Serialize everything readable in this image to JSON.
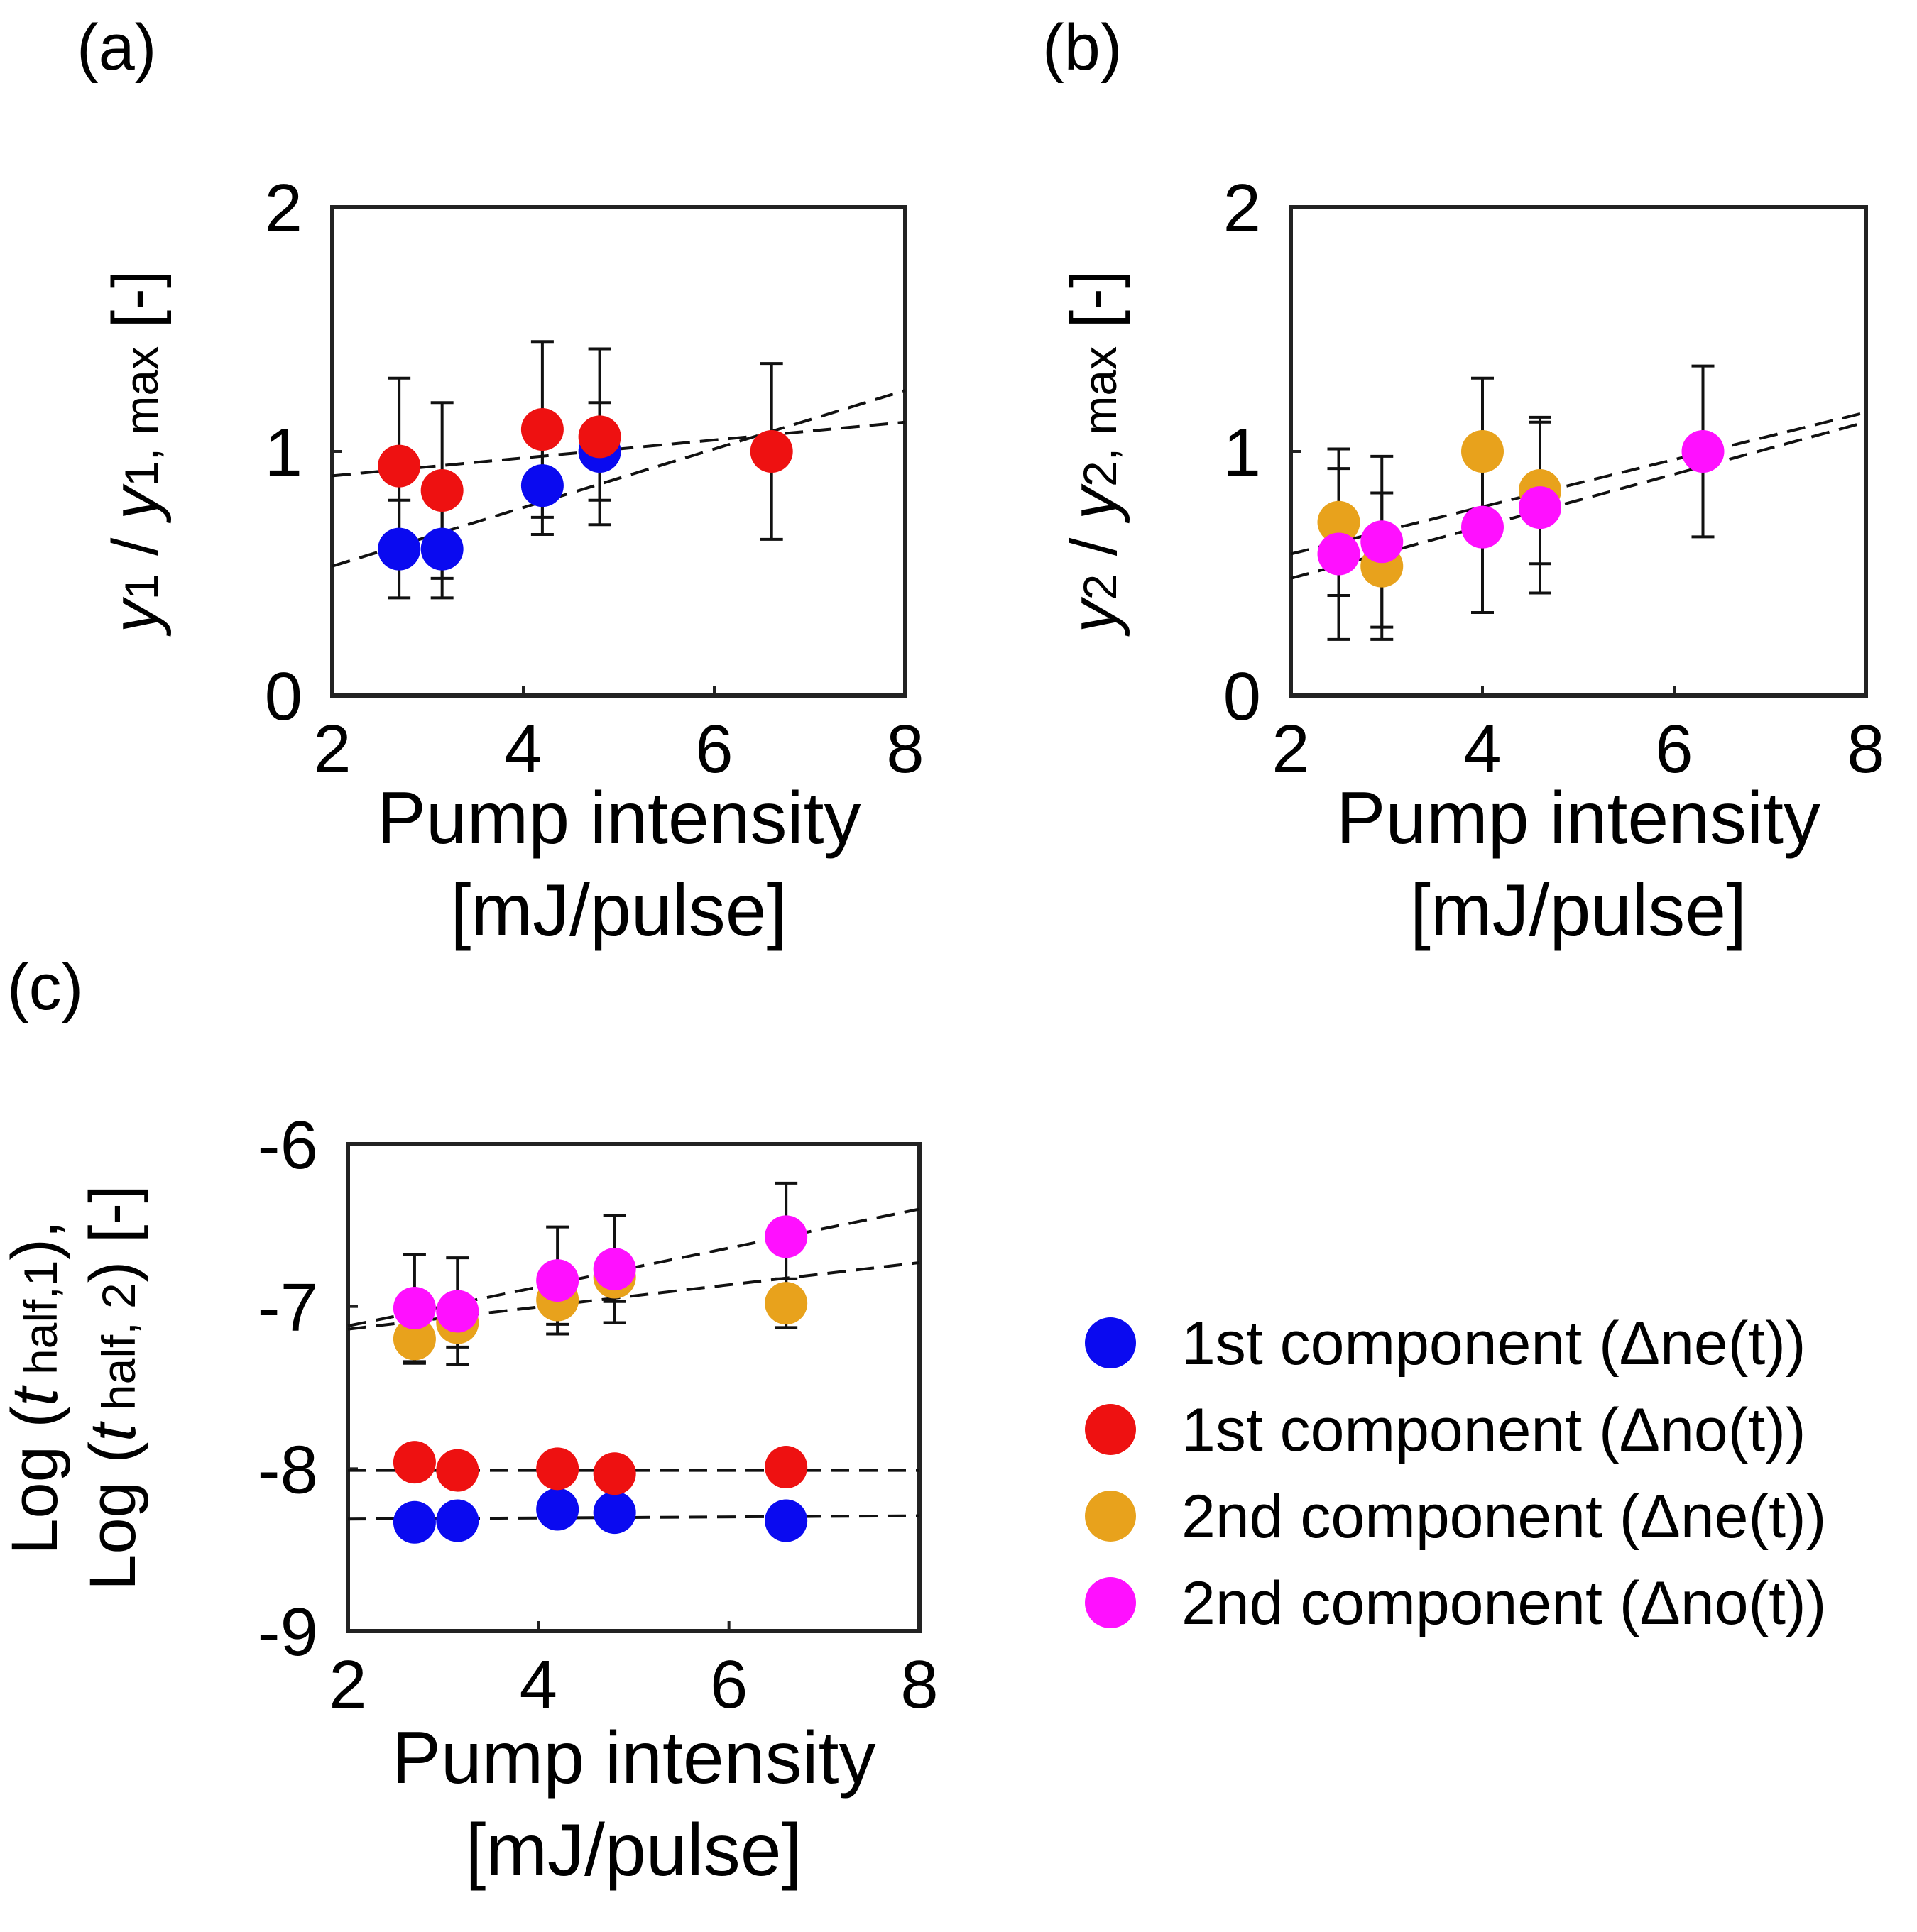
{
  "figure": {
    "legend": [
      {
        "label": "1st component (Δne(t))",
        "color": "#0a0af0"
      },
      {
        "label": "1st component (Δno(t))",
        "color": "#ee1111"
      },
      {
        "label": "2nd component (Δne(t))",
        "color": "#e8a21c"
      },
      {
        "label": "2nd component (Δno(t))",
        "color": "#ff10ff"
      }
    ]
  },
  "chart_data": [
    {
      "id": "a",
      "panel_label": "(a)",
      "type": "scatter",
      "title": "",
      "xlabel": "Pump intensity",
      "xunit": "[mJ/pulse]",
      "ylabel": "y1 / y1, max [-]",
      "ylabel_parts": {
        "v": "y",
        "s": "1",
        "mid": " / ",
        "v2": "y",
        "s2": "1, max",
        "tail": " [-]"
      },
      "xlim": [
        2,
        8
      ],
      "ylim": [
        0,
        2
      ],
      "xticks": [
        "2",
        "4",
        "6",
        "8"
      ],
      "yticks": [
        "0",
        "1",
        "2"
      ],
      "series": [
        {
          "name": "1st component (Δne(t))",
          "color": "#0a0af0",
          "x": [
            2.7,
            3.15,
            4.2,
            4.8
          ],
          "y": [
            0.6,
            0.6,
            0.86,
            1.0
          ],
          "err": [
            0.2,
            0.2,
            0.2,
            0.2
          ],
          "fit": [
            [
              2.0,
              0.53
            ],
            [
              8.0,
              1.25
            ]
          ]
        },
        {
          "name": "1st component (Δno(t))",
          "color": "#ee1111",
          "x": [
            2.7,
            3.15,
            4.2,
            4.8,
            6.6
          ],
          "y": [
            0.94,
            0.84,
            1.09,
            1.06,
            1.0
          ],
          "err": [
            0.36,
            0.36,
            0.36,
            0.36,
            0.36
          ],
          "fit": [
            [
              2.0,
              0.9
            ],
            [
              8.0,
              1.12
            ]
          ]
        }
      ]
    },
    {
      "id": "b",
      "panel_label": "(b)",
      "type": "scatter",
      "title": "",
      "xlabel": "Pump intensity",
      "xunit": "[mJ/pulse]",
      "ylabel": "y2 / y2, max [-]",
      "ylabel_parts": {
        "v": "y",
        "s": "2",
        "mid": " / ",
        "v2": "y",
        "s2": "2, max",
        "tail": " [-]"
      },
      "xlim": [
        2,
        8
      ],
      "ylim": [
        0,
        2
      ],
      "xticks": [
        "2",
        "4",
        "6",
        "8"
      ],
      "yticks": [
        "0",
        "1",
        "2"
      ],
      "series": [
        {
          "name": "2nd component (Δne(t))",
          "color": "#e8a21c",
          "x": [
            2.5,
            2.95,
            4.0,
            4.6
          ],
          "y": [
            0.71,
            0.53,
            1.0,
            0.84
          ],
          "err": [
            0.3,
            0.3,
            0.3,
            0.3
          ],
          "fit": [
            [
              2.0,
              0.58
            ],
            [
              8.0,
              1.16
            ]
          ]
        },
        {
          "name": "2nd component (Δno(t))",
          "color": "#ff10ff",
          "x": [
            2.5,
            2.95,
            4.0,
            4.6,
            6.3
          ],
          "y": [
            0.58,
            0.63,
            0.69,
            0.77,
            1.0
          ],
          "err": [
            0.35,
            0.35,
            0.35,
            0.35,
            0.35
          ],
          "fit": [
            [
              2.0,
              0.48
            ],
            [
              8.0,
              1.12
            ]
          ]
        }
      ]
    },
    {
      "id": "c",
      "panel_label": "(c)",
      "type": "scatter",
      "title": "",
      "xlabel": "Pump intensity",
      "xunit": "[mJ/pulse]",
      "ylabel_lines": [
        {
          "pre": "Log (",
          "v": "t",
          "s": " half,1",
          "post": "),"
        },
        {
          "pre": "Log (",
          "v": "t",
          "s": " half, 2",
          "post": ") [-]"
        }
      ],
      "xlim": [
        2,
        8
      ],
      "ylim": [
        -9,
        -6
      ],
      "xticks": [
        "2",
        "4",
        "6",
        "8"
      ],
      "yticks": [
        "-9",
        "-8",
        "-7",
        "-6"
      ],
      "series": [
        {
          "name": "1st component (Δne(t))",
          "color": "#0a0af0",
          "x": [
            2.7,
            3.15,
            4.2,
            4.8,
            6.6
          ],
          "y": [
            -8.33,
            -8.32,
            -8.25,
            -8.27,
            -8.32
          ],
          "err": [
            0,
            0,
            0,
            0,
            0
          ],
          "fit": [
            [
              2.0,
              -8.31
            ],
            [
              8.0,
              -8.29
            ]
          ]
        },
        {
          "name": "1st component (Δno(t))",
          "color": "#ee1111",
          "x": [
            2.7,
            3.15,
            4.2,
            4.8,
            6.6
          ],
          "y": [
            -7.96,
            -8.01,
            -8.0,
            -8.03,
            -7.99
          ],
          "err": [
            0.04,
            0.04,
            0.04,
            0.04,
            0.04
          ],
          "fit": [
            [
              2.0,
              -8.01
            ],
            [
              8.0,
              -8.01
            ]
          ]
        },
        {
          "name": "2nd component (Δne(t))",
          "color": "#e8a21c",
          "x": [
            2.7,
            3.15,
            4.2,
            4.8,
            6.6
          ],
          "y": [
            -7.2,
            -7.1,
            -6.96,
            -6.82,
            -6.98
          ],
          "err": [
            0.15,
            0.15,
            0.15,
            0.15,
            0.15
          ],
          "fit": [
            [
              2.0,
              -7.14
            ],
            [
              8.0,
              -6.73
            ]
          ]
        },
        {
          "name": "2nd component (Δno(t))",
          "color": "#ff10ff",
          "x": [
            2.7,
            3.15,
            4.2,
            4.8,
            6.6
          ],
          "y": [
            -7.01,
            -7.03,
            -6.84,
            -6.77,
            -6.57
          ],
          "err": [
            0.33,
            0.33,
            0.33,
            0.33,
            0.33
          ],
          "fit": [
            [
              2.0,
              -7.12
            ],
            [
              8.0,
              -6.4
            ]
          ]
        }
      ]
    }
  ]
}
